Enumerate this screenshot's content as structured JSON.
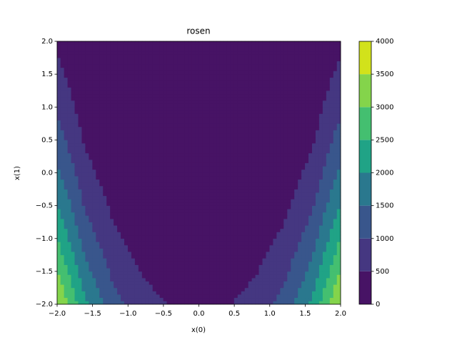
{
  "chart_data": {
    "type": "contour",
    "title": "rosen",
    "xlabel": "x(0)",
    "ylabel": "x(1)",
    "x": [
      -2,
      -1.6,
      -1.2,
      -0.8,
      -0.4,
      0,
      0.4,
      0.8,
      1.2,
      1.6,
      2
    ],
    "y": [
      -2,
      -1.6,
      -1.2,
      -0.8,
      -0.4,
      0,
      0.4,
      0.8,
      1.2,
      1.6,
      2
    ],
    "z": [
      [
        3609,
        2086.12,
        1188.2,
        700.2,
        468.52,
        401,
        466.92,
        697,
        1183.4,
        2079.72,
        3601
      ],
      [
        3145,
        1737.32,
        929,
        505,
        311.72,
        257,
        310.12,
        501.8,
        924.2,
        1730.92,
        3137
      ],
      [
        2713,
        1420.52,
        701.8,
        341.8,
        186.92,
        145,
        185.32,
        338.6,
        697,
        1414.12,
        2705
      ],
      [
        2313,
        1135.72,
        506.6,
        210.6,
        94.12,
        65,
        92.52,
        207.4,
        501.8,
        1129.32,
        2305
      ],
      [
        1945,
        882.92,
        343.4,
        111.4,
        33.32,
        17,
        31.72,
        108.2,
        338.6,
        876.52,
        1937
      ],
      [
        1609,
        662.12,
        212.2,
        44.2,
        4.52,
        1,
        2.92,
        41,
        207.4,
        655.72,
        1601
      ],
      [
        1305,
        473.32,
        113,
        9,
        7.72,
        17,
        6.12,
        5.8,
        108.2,
        466.92,
        1297
      ],
      [
        1033,
        316.52,
        45.8,
        5.8,
        42.92,
        65,
        41.32,
        2.6,
        41,
        310.12,
        1025
      ],
      [
        793,
        191.72,
        10.6,
        34.6,
        110.12,
        145,
        108.52,
        31.4,
        5.8,
        185.32,
        785
      ],
      [
        585,
        98.92,
        7.4,
        95.4,
        209.32,
        257,
        207.72,
        92.2,
        2.6,
        92.52,
        577
      ],
      [
        409,
        38.12,
        36.2,
        188.2,
        340.52,
        401,
        338.92,
        185,
        31.4,
        31.72,
        401
      ]
    ],
    "levels": [
      0,
      500,
      1000,
      1500,
      2000,
      2500,
      3000,
      3500,
      4000
    ],
    "colors": [
      "#471365",
      "#453781",
      "#39568c",
      "#2a788e",
      "#20a386",
      "#44bf70",
      "#84d44b",
      "#d2e21b"
    ],
    "xlim": [
      -2,
      2
    ],
    "ylim": [
      -2,
      2
    ],
    "xticks": [
      {
        "value": -2,
        "label": "−2.0"
      },
      {
        "value": -1.5,
        "label": "−1.5"
      },
      {
        "value": -1,
        "label": "−1.0"
      },
      {
        "value": -0.5,
        "label": "−0.5"
      },
      {
        "value": 0,
        "label": "0.0"
      },
      {
        "value": 0.5,
        "label": "0.5"
      },
      {
        "value": 1,
        "label": "1.0"
      },
      {
        "value": 1.5,
        "label": "1.5"
      },
      {
        "value": 2,
        "label": "2.0"
      }
    ],
    "yticks": [
      {
        "value": -2,
        "label": "−2.0"
      },
      {
        "value": -1.5,
        "label": "−1.5"
      },
      {
        "value": -1,
        "label": "−1.0"
      },
      {
        "value": -0.5,
        "label": "−0.5"
      },
      {
        "value": 0,
        "label": "0.0"
      },
      {
        "value": 0.5,
        "label": "0.5"
      },
      {
        "value": 1,
        "label": "1.0"
      },
      {
        "value": 1.5,
        "label": "1.5"
      },
      {
        "value": 2,
        "label": "2.0"
      }
    ]
  }
}
